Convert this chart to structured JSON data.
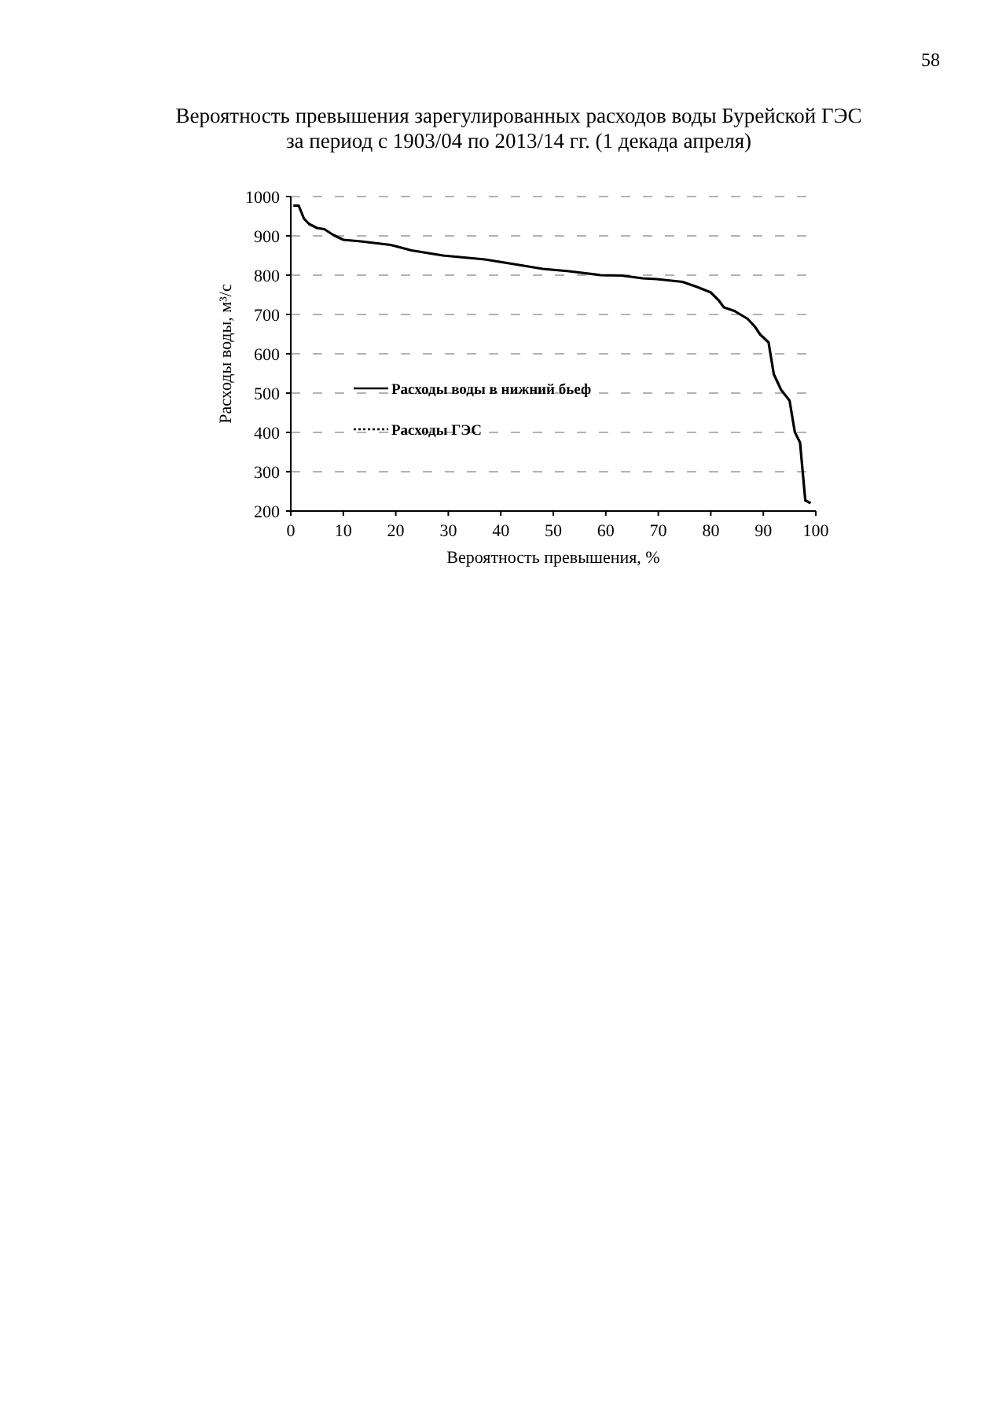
{
  "chart_data": {
    "type": "line",
    "title": "Вероятность превышения зарегулированных расходов воды Бурейской ГЭС\nза период с 1903/04 по 2013/14 гг. (1 декада апреля)",
    "xlabel": "Вероятность превышения, %",
    "ylabel": "Расходы воды, м³/с",
    "annotations": [
      "58"
    ],
    "x": [
      0.5,
      1.5,
      2.5,
      3.5,
      5,
      6.4,
      8,
      10,
      13.3,
      19,
      23,
      29,
      37,
      43,
      48,
      53,
      59,
      63,
      67,
      69.7,
      74.6,
      77.6,
      80,
      81.5,
      82.5,
      84.5,
      87,
      88.4,
      89.4,
      91,
      92,
      93.4,
      95,
      96,
      97,
      98,
      99
    ],
    "series": [
      {
        "name": "Расходы воды в нижний бьеф",
        "color": "#000000",
        "line_style": "solid",
        "values": [
          977,
          977,
          944,
          930,
          920,
          917,
          903,
          890,
          886,
          877,
          863,
          850,
          840,
          827,
          816,
          810,
          800,
          799,
          792,
          790,
          783,
          769,
          756,
          736,
          718,
          709,
          689,
          669,
          649,
          629,
          548,
          508,
          481,
          401,
          374,
          227,
          220
        ]
      },
      {
        "name": "Расходы ГЭС",
        "color": "#000000",
        "line_style": "dotted",
        "values": [
          977,
          977,
          944,
          930,
          920,
          917,
          903,
          890,
          886,
          877,
          863,
          850,
          840,
          827,
          816,
          810,
          800,
          799,
          792,
          790,
          783,
          769,
          756,
          736,
          718,
          709,
          689,
          669,
          649,
          629,
          548,
          508,
          481,
          401,
          374,
          227,
          220
        ]
      }
    ],
    "xlim": [
      0,
      100
    ],
    "xticks": [
      0,
      10,
      20,
      30,
      40,
      50,
      60,
      70,
      80,
      90,
      100
    ],
    "ylim": [
      200,
      1000
    ],
    "yticks": [
      200,
      300,
      400,
      500,
      600,
      700,
      800,
      900,
      1000
    ],
    "grid": "y",
    "legend": "left"
  }
}
